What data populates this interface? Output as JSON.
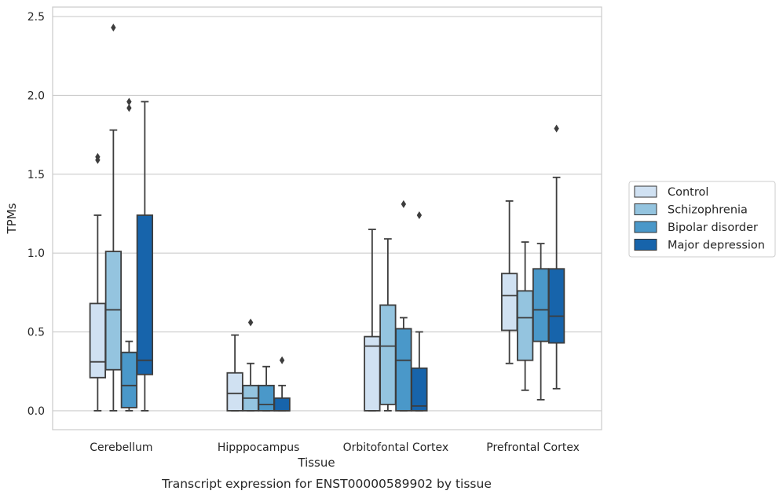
{
  "chart_data": {
    "type": "box",
    "xlabel": "Tissue",
    "ylabel": "TPMs",
    "caption": "Transcript expression for ENST00000589902 by tissue",
    "ylim": [
      -0.12,
      2.56
    ],
    "yticks": [
      "0.0",
      "0.5",
      "1.0",
      "1.5",
      "2.0",
      "2.5"
    ],
    "grid": "horizontal",
    "legend_placement": "right",
    "categories": [
      "Cerebellum",
      "Hipppocampus",
      "Orbitofontal Cortex",
      "Prefrontal Cortex"
    ],
    "series": [
      {
        "name": "Control",
        "color": "#d0e1f2",
        "boxes": [
          {
            "whislo": 0.0,
            "q1": 0.21,
            "med": 0.31,
            "q3": 0.68,
            "whishi": 1.24,
            "fliers": [
              1.59,
              1.61
            ]
          },
          {
            "whislo": 0.0,
            "q1": 0.0,
            "med": 0.11,
            "q3": 0.24,
            "whishi": 0.48,
            "fliers": []
          },
          {
            "whislo": 0.0,
            "q1": 0.0,
            "med": 0.41,
            "q3": 0.47,
            "whishi": 1.15,
            "fliers": []
          },
          {
            "whislo": 0.3,
            "q1": 0.51,
            "med": 0.73,
            "q3": 0.87,
            "whishi": 1.33,
            "fliers": []
          }
        ]
      },
      {
        "name": "Schizophrenia",
        "color": "#94c4df",
        "boxes": [
          {
            "whislo": 0.0,
            "q1": 0.26,
            "med": 0.64,
            "q3": 1.01,
            "whishi": 1.78,
            "fliers": [
              2.43
            ]
          },
          {
            "whislo": 0.0,
            "q1": 0.0,
            "med": 0.08,
            "q3": 0.16,
            "whishi": 0.3,
            "fliers": [
              0.56
            ]
          },
          {
            "whislo": 0.0,
            "q1": 0.04,
            "med": 0.41,
            "q3": 0.67,
            "whishi": 1.09,
            "fliers": []
          },
          {
            "whislo": 0.13,
            "q1": 0.32,
            "med": 0.59,
            "q3": 0.76,
            "whishi": 1.07,
            "fliers": []
          }
        ]
      },
      {
        "name": "Bipolar disorder",
        "color": "#4a98c9",
        "boxes": [
          {
            "whislo": 0.0,
            "q1": 0.02,
            "med": 0.16,
            "q3": 0.37,
            "whishi": 0.44,
            "fliers": [
              1.92,
              1.96
            ]
          },
          {
            "whislo": 0.0,
            "q1": 0.0,
            "med": 0.04,
            "q3": 0.16,
            "whishi": 0.28,
            "fliers": []
          },
          {
            "whislo": 0.0,
            "q1": 0.0,
            "med": 0.32,
            "q3": 0.52,
            "whishi": 0.59,
            "fliers": [
              1.31
            ]
          },
          {
            "whislo": 0.07,
            "q1": 0.44,
            "med": 0.64,
            "q3": 0.9,
            "whishi": 1.06,
            "fliers": []
          }
        ]
      },
      {
        "name": "Major depression",
        "color": "#1764ab",
        "boxes": [
          {
            "whislo": 0.0,
            "q1": 0.23,
            "med": 0.32,
            "q3": 1.24,
            "whishi": 1.96,
            "fliers": []
          },
          {
            "whislo": 0.0,
            "q1": 0.0,
            "med": 0.0,
            "q3": 0.08,
            "whishi": 0.16,
            "fliers": [
              0.32
            ]
          },
          {
            "whislo": 0.0,
            "q1": 0.0,
            "med": 0.03,
            "q3": 0.27,
            "whishi": 0.5,
            "fliers": [
              1.24
            ]
          },
          {
            "whislo": 0.14,
            "q1": 0.43,
            "med": 0.6,
            "q3": 0.9,
            "whishi": 1.48,
            "fliers": [
              1.79
            ]
          }
        ]
      }
    ]
  }
}
